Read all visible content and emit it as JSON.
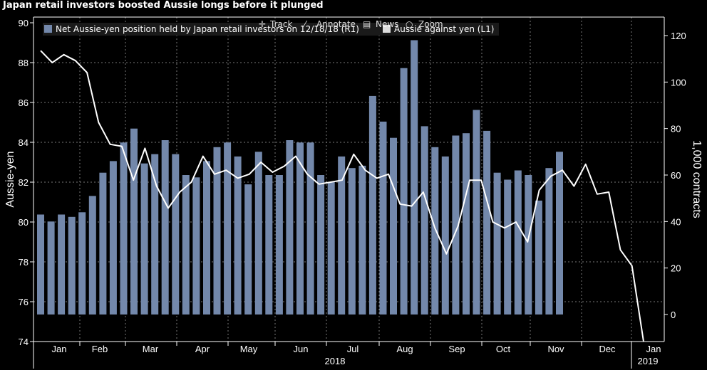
{
  "title": "Japan retail investors boosted Aussie longs before it plunged",
  "toolbar": {
    "track_label": "Track",
    "annotate_label": "Annotate",
    "news_label": "News",
    "zoom_label": "Zoom"
  },
  "chart_data": {
    "type": "bar+line",
    "title": "Japan retail investors boosted Aussie longs before it plunged",
    "ylabel_left": "Aussie-yen",
    "ylabel_right": "1,000 contracts",
    "left_axis": {
      "min": 74,
      "max": 90,
      "ticks": [
        74,
        76,
        78,
        80,
        82,
        84,
        86,
        88,
        90
      ]
    },
    "right_axis": {
      "min": 0,
      "max": 120,
      "ticks": [
        0,
        20,
        40,
        60,
        80,
        100,
        120
      ]
    },
    "x_month_labels": [
      "Jan",
      "Feb",
      "Mar",
      "Apr",
      "May",
      "Jun",
      "Jul",
      "Aug",
      "Sep",
      "Oct",
      "Nov",
      "Dec",
      "Jan"
    ],
    "x_year_labels": [
      "2018",
      "2019"
    ],
    "grid": true,
    "legend_position": "top-left",
    "series": [
      {
        "name": "Net Aussie-yen position held by Japan retail investors on 12/18/18 (R1)",
        "type": "bar",
        "axis": "right",
        "color": "#7388ab",
        "values": [
          43,
          40,
          43,
          42,
          44,
          51,
          61,
          66,
          74,
          80,
          65,
          69,
          75,
          69,
          60,
          59,
          66,
          72,
          74,
          68,
          56,
          70,
          60,
          60,
          75,
          74,
          74,
          60,
          57,
          68,
          63,
          64,
          94,
          83,
          76,
          106,
          118,
          81,
          72,
          68,
          77,
          78,
          88,
          79,
          61,
          58,
          62,
          60,
          49,
          63,
          70
        ]
      },
      {
        "name": "Aussie against yen (L1)",
        "type": "line",
        "axis": "left",
        "color": "#ffffff",
        "values": [
          88.6,
          88.0,
          88.4,
          88.1,
          87.5,
          85.0,
          83.9,
          83.8,
          82.1,
          83.7,
          81.8,
          80.7,
          81.5,
          82.0,
          83.3,
          82.4,
          82.6,
          82.2,
          82.4,
          83.0,
          82.5,
          82.8,
          83.3,
          82.4,
          81.9,
          82.0,
          82.1,
          83.4,
          82.6,
          82.2,
          82.4,
          80.9,
          80.8,
          81.5,
          79.7,
          78.4,
          79.8,
          82.1,
          82.1,
          80.0,
          79.7,
          80.0,
          79.0,
          81.6,
          82.3,
          82.6,
          81.8,
          82.9,
          81.4,
          81.5,
          78.6,
          77.8,
          74.0
        ]
      }
    ]
  }
}
